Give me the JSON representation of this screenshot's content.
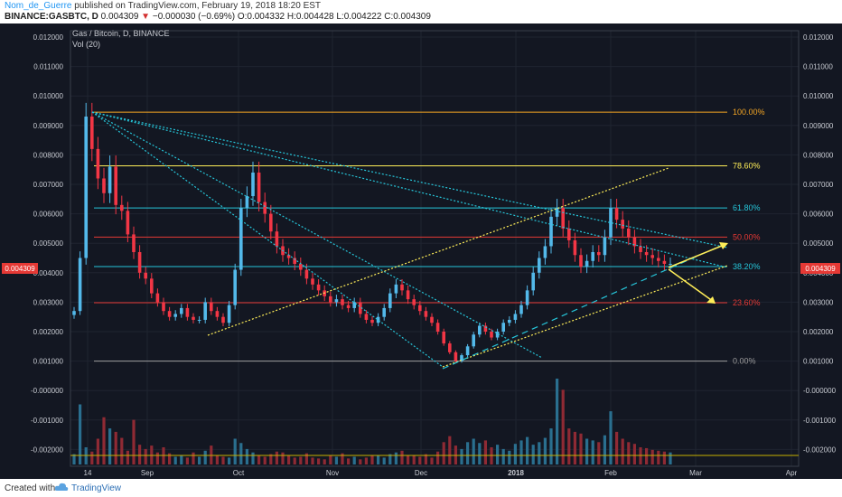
{
  "header": {
    "author": "Nom_de_Guerre",
    "published_text": "published on TradingView.com, February 19, 2018 18:20 EST",
    "symbol": "BINANCE:GASBTC, D",
    "last_price": "0.004309",
    "change": "−0.000030 (−0.69%)",
    "ohlc_o": "O:0.004332",
    "ohlc_h": "H:0.004428",
    "ohlc_l": "L:0.004222",
    "ohlc_c": "C:0.004309"
  },
  "legend": {
    "title": "Gas / Bitcoin, D, BINANCE",
    "vol": "Vol (20)"
  },
  "footer": {
    "created_with": "Created with",
    "brand": "TradingView"
  },
  "price_label": "0.004309",
  "colors": {
    "bg": "#131722",
    "up": "#53b9ea",
    "down": "#f23645",
    "fib100": "#f5a623",
    "fib786": "#ffee58",
    "fib618": "#26c6da",
    "fib50": "#e53935",
    "fib382": "#26c6da",
    "fib236": "#e53935",
    "fib0": "#9e9e9e",
    "price_tag": "#e53935"
  },
  "chart_data": {
    "type": "candlestick",
    "title": "Gas / Bitcoin, D, BINANCE",
    "x_ticks": [
      "14",
      "Sep",
      "Oct",
      "Nov",
      "Dec",
      "2018",
      "Feb",
      "Mar",
      "Apr"
    ],
    "y_ticks": [
      "0.012000",
      "0.011000",
      "0.010000",
      "0.009000",
      "0.008000",
      "0.007000",
      "0.006000",
      "0.005000",
      "0.004000",
      "0.003000",
      "0.002000",
      "0.001000",
      "-0.000000",
      "-0.001000",
      "-0.002000"
    ],
    "ylim": [
      -0.0022,
      0.0124
    ],
    "fib_levels": [
      {
        "label": "100.00%",
        "value": 0.00945,
        "color": "#f5a623"
      },
      {
        "label": "78.60%",
        "value": 0.00763,
        "color": "#ffee58"
      },
      {
        "label": "61.80%",
        "value": 0.0062,
        "color": "#26c6da"
      },
      {
        "label": "50.00%",
        "value": 0.00521,
        "color": "#e53935"
      },
      {
        "label": "38.20%",
        "value": 0.00421,
        "color": "#26c6da"
      },
      {
        "label": "23.60%",
        "value": 0.00298,
        "color": "#e53935"
      },
      {
        "label": "0.00%",
        "value": 0.001,
        "color": "#9e9e9e"
      }
    ],
    "close_series": [
      0.0027,
      0.0045,
      0.0093,
      0.0082,
      0.0072,
      0.0067,
      0.0076,
      0.0063,
      0.0061,
      0.0053,
      0.0047,
      0.004,
      0.0038,
      0.0033,
      0.003,
      0.0027,
      0.0025,
      0.0026,
      0.0028,
      0.0025,
      0.0024,
      0.0024,
      0.003,
      0.0027,
      0.0025,
      0.0023,
      0.0029,
      0.0041,
      0.0062,
      0.0066,
      0.0074,
      0.0064,
      0.006,
      0.0054,
      0.0049,
      0.0046,
      0.0045,
      0.0043,
      0.0041,
      0.0038,
      0.0036,
      0.0034,
      0.0032,
      0.003,
      0.0031,
      0.0029,
      0.0028,
      0.003,
      0.0026,
      0.0024,
      0.0023,
      0.0025,
      0.0028,
      0.0033,
      0.0036,
      0.0034,
      0.0031,
      0.0029,
      0.0027,
      0.0025,
      0.0023,
      0.002,
      0.0016,
      0.0013,
      0.001,
      0.0012,
      0.0015,
      0.0019,
      0.0022,
      0.002,
      0.0018,
      0.002,
      0.0023,
      0.0024,
      0.0026,
      0.0029,
      0.0034,
      0.004,
      0.0045,
      0.0049,
      0.0059,
      0.0062,
      0.0055,
      0.0051,
      0.0046,
      0.0042,
      0.0044,
      0.0047,
      0.0046,
      0.0052,
      0.0062,
      0.0058,
      0.0055,
      0.0052,
      0.0049,
      0.0047,
      0.0046,
      0.0045,
      0.0044,
      0.0043,
      0.0043
    ],
    "volume_series": [
      120,
      700,
      200,
      150,
      300,
      550,
      420,
      380,
      310,
      160,
      520,
      230,
      180,
      220,
      140,
      200,
      130,
      90,
      110,
      80,
      140,
      90,
      160,
      220,
      110,
      90,
      80,
      300,
      250,
      180,
      140,
      100,
      90,
      120,
      150,
      140,
      100,
      80,
      90,
      130,
      80,
      70,
      60,
      110,
      90,
      130,
      70,
      90,
      60,
      80,
      100,
      110,
      80,
      120,
      140,
      160,
      110,
      100,
      90,
      120,
      80,
      150,
      260,
      330,
      220,
      180,
      260,
      300,
      250,
      280,
      200,
      230,
      180,
      160,
      240,
      280,
      320,
      230,
      260,
      310,
      420,
      1000,
      870,
      420,
      380,
      360,
      300,
      280,
      260,
      340,
      620,
      380,
      300,
      260,
      240,
      200,
      190,
      170,
      160,
      150,
      140
    ]
  }
}
